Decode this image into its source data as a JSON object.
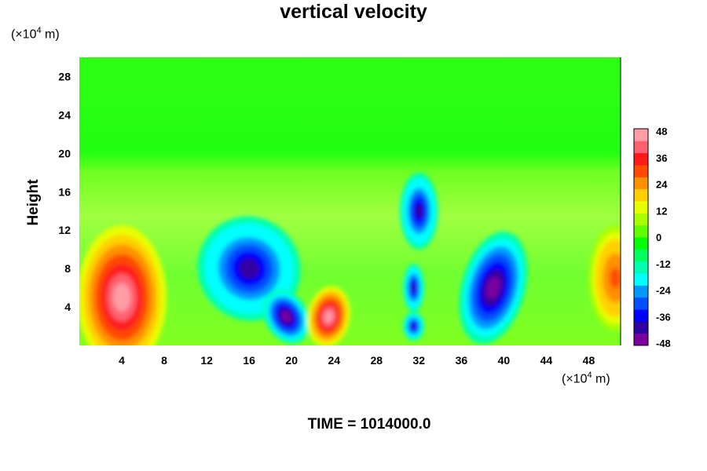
{
  "chart_data": {
    "type": "heatmap",
    "title": "vertical velocity",
    "ylabel": "Height",
    "y_unit": {
      "prefix": "(×10",
      "exp": "4",
      "suffix": " m)"
    },
    "x_unit": {
      "prefix": "(×10",
      "exp": "4",
      "suffix": " m)"
    },
    "xlim": [
      0,
      51
    ],
    "ylim": [
      0,
      30
    ],
    "x_ticks": [
      4,
      8,
      12,
      16,
      20,
      24,
      28,
      32,
      36,
      40,
      44,
      48
    ],
    "y_ticks": [
      4,
      8,
      12,
      16,
      20,
      24,
      28
    ],
    "colorbar": {
      "range": [
        -48,
        48
      ],
      "ticks": [
        48,
        36,
        24,
        12,
        0,
        -12,
        -24,
        -36,
        -48
      ],
      "colors": [
        "#7a00a0",
        "#3000a0",
        "#0000ff",
        "#0050ff",
        "#0098ff",
        "#00ffff",
        "#00ffb0",
        "#00ff60",
        "#00ff00",
        "#60ff00",
        "#a8ff00",
        "#e8ff00",
        "#ffd000",
        "#ff9000",
        "#ff4a00",
        "#ff1a1a",
        "#ff6070",
        "#ff9ca6"
      ]
    },
    "features": [
      {
        "kind": "updraft",
        "x": 4,
        "y": 5,
        "peak": 48
      },
      {
        "kind": "downdraft",
        "x": 16,
        "y": 8,
        "peak": -40
      },
      {
        "kind": "downdraft",
        "x": 19.5,
        "y": 3,
        "peak": -48
      },
      {
        "kind": "updraft",
        "x": 23.5,
        "y": 3,
        "peak": 44
      },
      {
        "kind": "downdraft",
        "x": 32,
        "y": 14,
        "peak": -40
      },
      {
        "kind": "downdraft",
        "x": 31.5,
        "y": 6,
        "peak": -40
      },
      {
        "kind": "downdraft",
        "x": 31.5,
        "y": 2,
        "peak": -40
      },
      {
        "kind": "downdraft",
        "x": 39,
        "y": 6,
        "peak": -44
      },
      {
        "kind": "updraft",
        "x": 50.5,
        "y": 7,
        "peak": 30
      }
    ],
    "grid": false,
    "legend": "colorbar-right"
  },
  "footer": {
    "time_label": "TIME = 1014000.0"
  }
}
